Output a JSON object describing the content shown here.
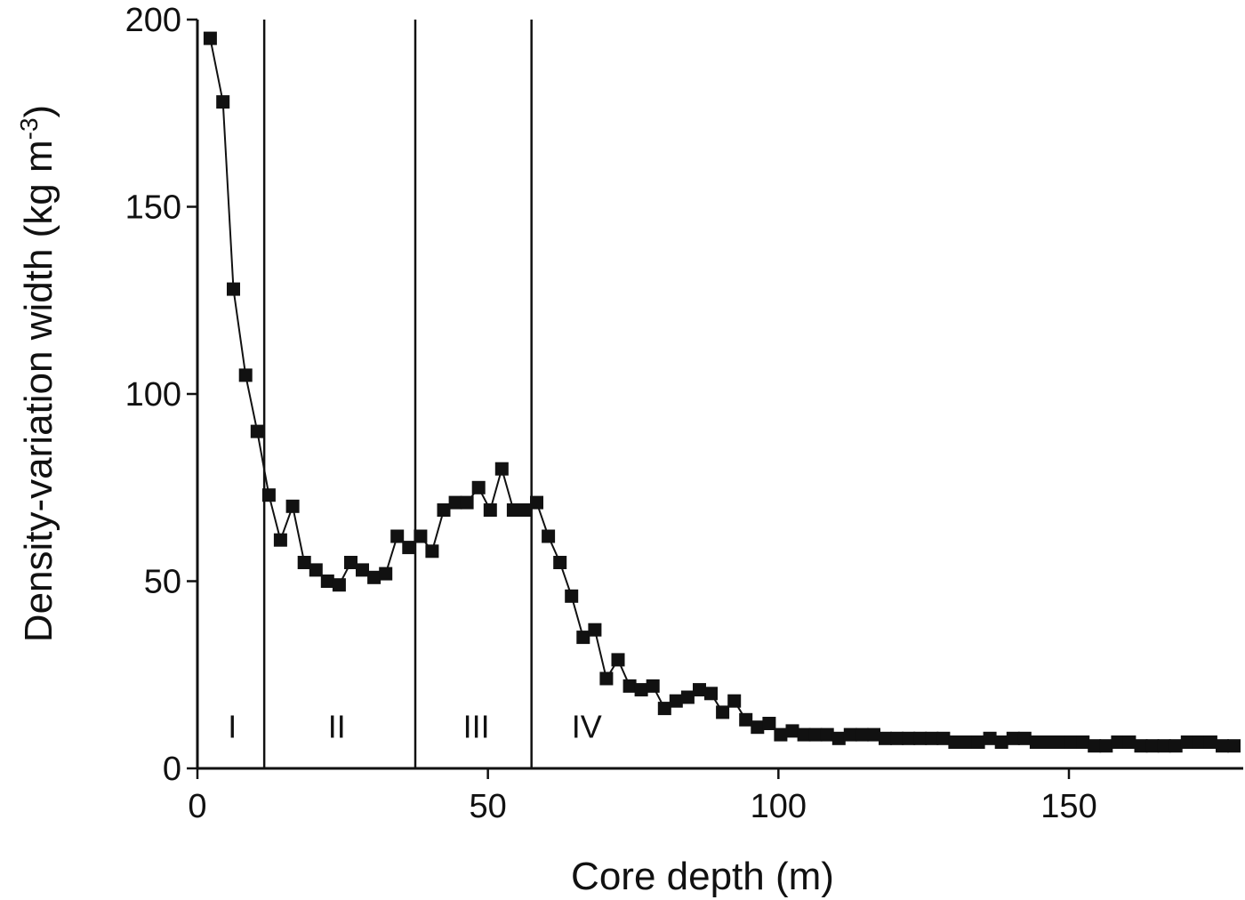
{
  "chart_data": {
    "type": "line",
    "title": "",
    "xlabel": "Core depth (m)",
    "ylabel": "Density-variation width (kg m",
    "ylabel_sup": "-3",
    "ylabel_close": ")",
    "xlim": [
      0,
      180
    ],
    "ylim": [
      0,
      200
    ],
    "x_ticks": [
      0,
      50,
      100,
      150
    ],
    "y_ticks": [
      0,
      50,
      100,
      150,
      200
    ],
    "x_tick_labels": [
      "0",
      "50",
      "100",
      "150"
    ],
    "y_tick_labels": [
      "0",
      "50",
      "100",
      "150",
      "200"
    ],
    "grid": false,
    "boundaries": [
      11.5,
      37.5,
      57.5
    ],
    "zones": [
      {
        "label": "I",
        "x": 6,
        "y": 11
      },
      {
        "label": "II",
        "x": 24,
        "y": 11
      },
      {
        "label": "III",
        "x": 48,
        "y": 11
      },
      {
        "label": "IV",
        "x": 67,
        "y": 11
      }
    ],
    "series": [
      {
        "x": [
          2.2,
          4.4,
          6.2,
          8.3,
          10.3,
          12.3,
          14.3,
          16.4,
          18.4,
          20.4,
          22.4,
          24.4,
          26.4,
          28.4,
          30.4,
          32.4,
          34.4,
          36.4,
          38.4,
          40.4,
          42.4,
          44.4,
          46.4,
          48.4,
          50.4,
          52.4,
          54.4,
          56.4,
          58.4,
          60.4,
          62.4,
          64.4,
          66.4,
          68.4,
          70.4,
          72.4,
          74.4,
          76.4,
          78.4,
          80.4,
          82.4,
          84.4,
          86.4,
          88.4,
          90.4,
          92.4,
          94.4,
          96.4,
          98.4,
          100.4,
          102.4,
          104.4,
          106.4,
          108.4,
          110.4,
          112.4,
          114.4,
          116.4,
          118.4,
          120.4,
          122.4,
          124.4,
          126.4,
          128.4,
          130.4,
          132.4,
          134.4,
          136.4,
          138.4,
          140.4,
          142.4,
          144.4,
          146.4,
          148.4,
          150.4,
          152.4,
          154.4,
          156.4,
          158.4,
          160.4,
          162.4,
          164.4,
          166.4,
          168.4,
          170.4,
          172.4,
          174.4,
          176.4,
          178.4
        ],
        "values": [
          195,
          178,
          128,
          105,
          90,
          73,
          61,
          70,
          55,
          53,
          50,
          49,
          55,
          53,
          51,
          52,
          62,
          59,
          62,
          58,
          69,
          71,
          71,
          75,
          69,
          80,
          69,
          69,
          71,
          62,
          55,
          46,
          35,
          37,
          24,
          29,
          22,
          21,
          22,
          16,
          18,
          19,
          21,
          20,
          15,
          18,
          13,
          11,
          12,
          9,
          10,
          9,
          9,
          9,
          8,
          9,
          9,
          9,
          8,
          8,
          8,
          8,
          8,
          8,
          7,
          7,
          7,
          8,
          7,
          8,
          8,
          7,
          7,
          7,
          7,
          7,
          6,
          6,
          7,
          7,
          6,
          6,
          6,
          6,
          7,
          7,
          7,
          6,
          6
        ]
      }
    ]
  }
}
